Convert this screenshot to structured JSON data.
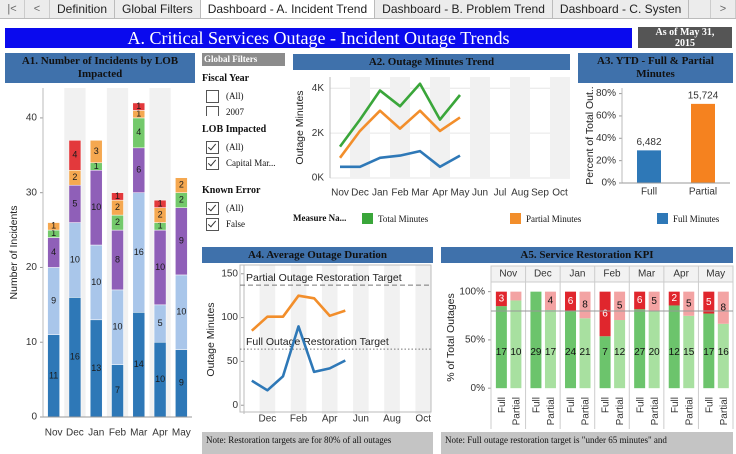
{
  "tabs": [
    {
      "text": "Definition",
      "active": false
    },
    {
      "text": "Global Filters",
      "active": false
    },
    {
      "text": "Dashboard - A. Incident Trend",
      "active": true
    },
    {
      "text": "Dashboard - B. Problem Trend",
      "active": false
    },
    {
      "text": "Dashboard - C. Systen",
      "active": false
    }
  ],
  "header": {
    "title": "A. Critical Services Outage - Incident Outage Trends",
    "as_of": [
      "As of May 31,",
      "2015"
    ]
  },
  "filters": {
    "title": "Global Filters",
    "groups": [
      {
        "label": "Fiscal Year",
        "options": [
          {
            "text": "(All)",
            "checked": false
          },
          {
            "text": "2007",
            "checked": false
          }
        ]
      },
      {
        "label": "LOB Impacted",
        "options": [
          {
            "text": "(All)",
            "checked": true
          },
          {
            "text": "Capital Mar...",
            "checked": true
          }
        ]
      },
      {
        "label": "Known Error",
        "options": [
          {
            "text": "(All)",
            "checked": true
          },
          {
            "text": "False",
            "checked": true
          }
        ]
      }
    ]
  },
  "chart_data": [
    {
      "type": "bar",
      "stacked": true,
      "title": "A1. Number of Incidents by LOB Impacted",
      "y_label": "Number of Incidents",
      "categories": [
        "Nov",
        "Dec",
        "Jan",
        "Feb",
        "Mar",
        "Apr",
        "May"
      ],
      "series": [
        {
          "color": "#2e78b7",
          "values": [
            11,
            16,
            13,
            7,
            14,
            10,
            9
          ]
        },
        {
          "color": "#a9c6ea",
          "values": [
            9,
            10,
            10,
            10,
            16,
            5,
            10
          ]
        },
        {
          "color": "#8f5fb8",
          "values": [
            4,
            5,
            10,
            8,
            6,
            10,
            9
          ]
        },
        {
          "color": "#74c96b",
          "values": [
            1,
            0,
            1,
            2,
            4,
            1,
            2
          ]
        },
        {
          "color": "#f5a850",
          "values": [
            1,
            2,
            3,
            2,
            1,
            2,
            2
          ]
        },
        {
          "color": "#e3393c",
          "values": [
            0,
            4,
            0,
            1,
            1,
            1,
            0
          ]
        }
      ],
      "ylim": [
        0,
        44
      ],
      "yticks": [
        0,
        10,
        20,
        30,
        40
      ],
      "grid": false
    },
    {
      "type": "line",
      "title": "A2. Outage Minutes Trend",
      "y_label": "Outage Minutes",
      "categories": [
        "Nov",
        "Dec",
        "Jan",
        "Feb",
        "Mar",
        "Apr",
        "May",
        "Jun",
        "Jul",
        "Aug",
        "Sep",
        "Oct"
      ],
      "series": [
        {
          "name": "Total Minutes",
          "color": "#3aa63a",
          "values": [
            1400,
            2600,
            3900,
            3200,
            4200,
            2600,
            3700,
            null,
            null,
            null,
            null,
            null
          ]
        },
        {
          "name": "Partial Minutes",
          "color": "#f28e2b",
          "values": [
            900,
            2100,
            3000,
            2200,
            3000,
            2100,
            2700,
            null,
            null,
            null,
            null,
            null
          ]
        },
        {
          "name": "Full Minutes",
          "color": "#2e78b7",
          "values": [
            500,
            500,
            900,
            1000,
            1200,
            500,
            1000,
            null,
            null,
            null,
            null,
            null
          ]
        }
      ],
      "legend_title": "Measure Na...",
      "ylim": [
        0,
        4500
      ],
      "yticks": [
        {
          "value": 0,
          "label": "0K"
        },
        {
          "value": 2000,
          "label": "2K"
        },
        {
          "value": 4000,
          "label": "4K"
        }
      ],
      "grid": true
    },
    {
      "type": "bar",
      "title": "A3. YTD - Full & Partial Minutes",
      "y_label": "Percent of Total Out..",
      "categories": [
        "Full",
        "Partial"
      ],
      "values": [
        29.2,
        70.8
      ],
      "labels": [
        "6,482",
        "15,724"
      ],
      "colors": [
        "#2e78b7",
        "#f5821f"
      ],
      "ylim": [
        0,
        85
      ],
      "yticks": [
        {
          "value": 0,
          "label": "0%"
        },
        {
          "value": 20,
          "label": "20%"
        },
        {
          "value": 40,
          "label": "40%"
        },
        {
          "value": 60,
          "label": "60%"
        },
        {
          "value": 80,
          "label": "80%"
        }
      ],
      "grid": false
    },
    {
      "type": "line",
      "title": "A4. Average Outage Duration",
      "y_label": "Outage Minutes",
      "categories": [
        null,
        "Dec",
        null,
        "Feb",
        null,
        "Apr",
        null,
        "Jun",
        null,
        "Aug",
        null,
        "Oct"
      ],
      "series": [
        {
          "color": "#f28e2b",
          "values": [
            85,
            101,
            101,
            125,
            122,
            102,
            108,
            null,
            null,
            null,
            null,
            null
          ]
        },
        {
          "color": "#2e78b7",
          "values": [
            28,
            17,
            33,
            90,
            38,
            42,
            51,
            null,
            null,
            null,
            null,
            null
          ]
        }
      ],
      "reference_lines": [
        {
          "label": "Partial Outage Restoration Target",
          "value": 137,
          "style": "dashed"
        },
        {
          "label": "Full Outage Restoration Target",
          "value": 64,
          "style": "dotted"
        }
      ],
      "ylim": [
        -10,
        160
      ],
      "yticks": [
        0,
        50,
        100,
        150
      ],
      "grid": false,
      "note": "Note:  Restoration targets are for 80% of all outages"
    },
    {
      "type": "bar",
      "stacked": true,
      "title": "A5. Service Restoration KPI",
      "y_label": "% of Total Outages",
      "categories": [
        "Nov",
        "Dec",
        "Jan",
        "Feb",
        "Mar",
        "Apr",
        "May"
      ],
      "groups": [
        {
          "name": "Full",
          "series": [
            {
              "color": "#6cc46c",
              "label_color": "#111111",
              "values": [
                85,
                100,
                80,
                53.8,
                81.8,
                85.7,
                77.3
              ],
              "counts": [
                17,
                29,
                24,
                7,
                27,
                12,
                17
              ]
            },
            {
              "color": "#e0262d",
              "label_color": "#ffffff",
              "values": [
                15,
                0,
                20,
                46.2,
                18.2,
                14.3,
                22.7
              ],
              "counts": [
                3,
                null,
                6,
                6,
                6,
                2,
                5
              ]
            }
          ]
        },
        {
          "name": "Partial",
          "series": [
            {
              "color": "#a8e0a0",
              "label_color": "#111111",
              "values": [
                90.9,
                81,
                72.4,
                70.6,
                80,
                75,
                66.7
              ],
              "counts": [
                10,
                17,
                21,
                12,
                20,
                15,
                16
              ]
            },
            {
              "color": "#f3a3a3",
              "label_color": "#111111",
              "values": [
                9.1,
                19,
                27.6,
                29.4,
                20,
                25,
                33.3
              ],
              "counts": [
                null,
                4,
                8,
                5,
                5,
                5,
                8
              ]
            }
          ]
        }
      ],
      "reference_line": 80,
      "ylim": [
        -5,
        110
      ],
      "yticks": [
        {
          "value": 0,
          "label": "0%"
        },
        {
          "value": 50,
          "label": "50%"
        },
        {
          "value": 100,
          "label": "100%"
        }
      ],
      "grid": false,
      "note": "Note:  Full outage restoration target is \"under 65 minutes\" and"
    }
  ]
}
